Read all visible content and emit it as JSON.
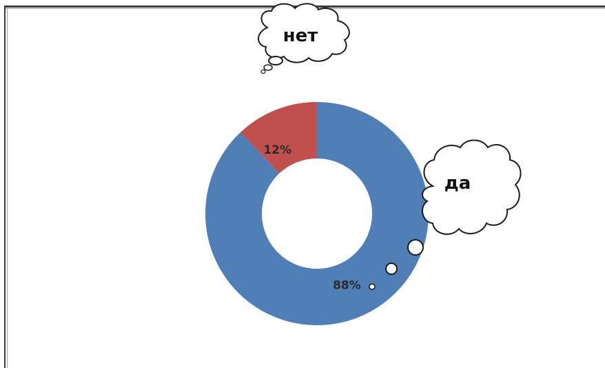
{
  "chart_data": {
    "type": "pie",
    "variant": "donut-exploded",
    "slices": [
      {
        "label": "да",
        "value": 88,
        "value_label": "88%",
        "color": "#4f7fb6"
      },
      {
        "label": "нет",
        "value": 12,
        "value_label": "12%",
        "color": "#c0504d"
      }
    ],
    "legend": "none"
  }
}
